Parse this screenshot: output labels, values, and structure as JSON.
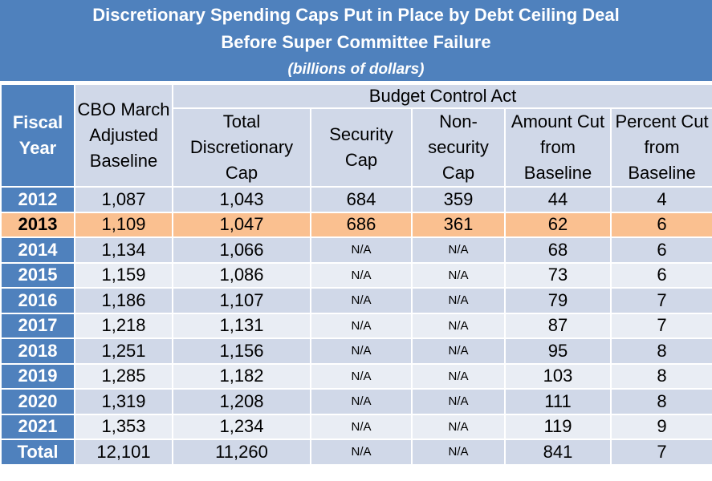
{
  "title": {
    "line1": "Discretionary Spending Caps  Put in Place by Debt Ceiling Deal",
    "line2": "Before Super Committee Failure",
    "line3": "(billions of dollars)"
  },
  "headers": {
    "fiscal_year": "Fiscal Year",
    "cbo_baseline": "CBO March Adjusted Baseline",
    "group": "Budget Control Act",
    "total_cap": "Total Discretionary Cap",
    "security_cap": "Security Cap",
    "nonsecurity_cap": "Non-security Cap",
    "amount_cut": "Amount Cut from Baseline",
    "percent_cut": "Percent Cut from Baseline"
  },
  "rows": [
    {
      "year": "2012",
      "baseline": "1,087",
      "total_cap": "1,043",
      "security": "684",
      "nonsecurity": "359",
      "amount": "44",
      "percent": "4"
    },
    {
      "year": "2013",
      "baseline": "1,109",
      "total_cap": "1,047",
      "security": "686",
      "nonsecurity": "361",
      "amount": "62",
      "percent": "6"
    },
    {
      "year": "2014",
      "baseline": "1,134",
      "total_cap": "1,066",
      "security": "N/A",
      "nonsecurity": "N/A",
      "amount": "68",
      "percent": "6"
    },
    {
      "year": "2015",
      "baseline": "1,159",
      "total_cap": "1,086",
      "security": "N/A",
      "nonsecurity": "N/A",
      "amount": "73",
      "percent": "6"
    },
    {
      "year": "2016",
      "baseline": "1,186",
      "total_cap": "1,107",
      "security": "N/A",
      "nonsecurity": "N/A",
      "amount": "79",
      "percent": "7"
    },
    {
      "year": "2017",
      "baseline": "1,218",
      "total_cap": "1,131",
      "security": "N/A",
      "nonsecurity": "N/A",
      "amount": "87",
      "percent": "7"
    },
    {
      "year": "2018",
      "baseline": "1,251",
      "total_cap": "1,156",
      "security": "N/A",
      "nonsecurity": "N/A",
      "amount": "95",
      "percent": "8"
    },
    {
      "year": "2019",
      "baseline": "1,285",
      "total_cap": "1,182",
      "security": "N/A",
      "nonsecurity": "N/A",
      "amount": "103",
      "percent": "8"
    },
    {
      "year": "2020",
      "baseline": "1,319",
      "total_cap": "1,208",
      "security": "N/A",
      "nonsecurity": "N/A",
      "amount": "111",
      "percent": "8"
    },
    {
      "year": "2021",
      "baseline": "1,353",
      "total_cap": "1,234",
      "security": "N/A",
      "nonsecurity": "N/A",
      "amount": "119",
      "percent": "9"
    },
    {
      "year": "Total",
      "baseline": "12,101",
      "total_cap": "11,260",
      "security": "N/A",
      "nonsecurity": "N/A",
      "amount": "841",
      "percent": "7"
    }
  ],
  "colors": {
    "header_blue": "#4f81bd",
    "row_dark": "#d0d8e8",
    "row_light": "#e9edf4",
    "highlight": "#fac090"
  }
}
